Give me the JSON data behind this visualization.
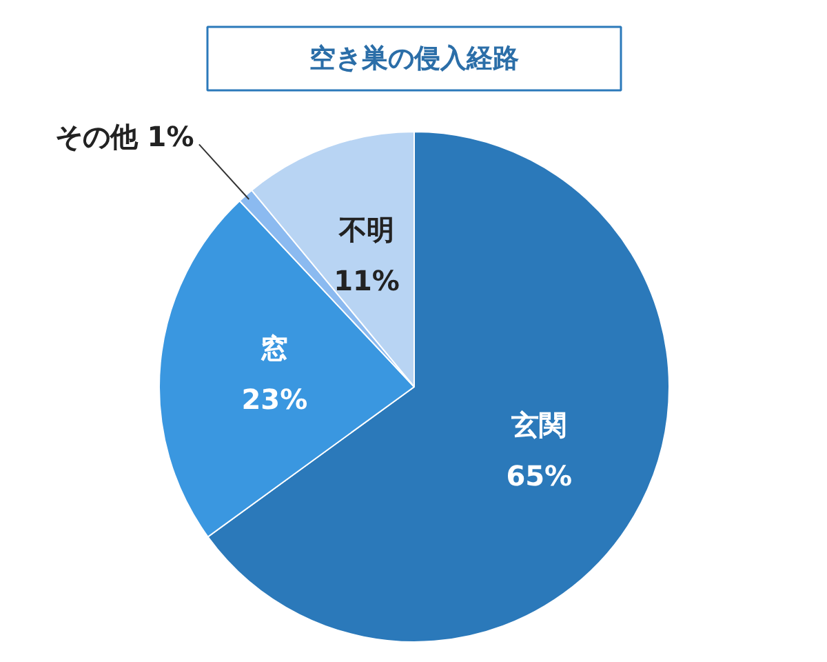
{
  "chart_data": {
    "type": "pie",
    "title": "空き巣の侵入経路",
    "categories": [
      "玄関",
      "窓",
      "その他",
      "不明"
    ],
    "values": [
      65,
      23,
      1,
      11
    ],
    "value_labels": [
      "65%",
      "23%",
      "1%",
      "11%"
    ],
    "colors": [
      "#2b79ba",
      "#3a97e0",
      "#8bbaf0",
      "#b8d4f3"
    ]
  }
}
